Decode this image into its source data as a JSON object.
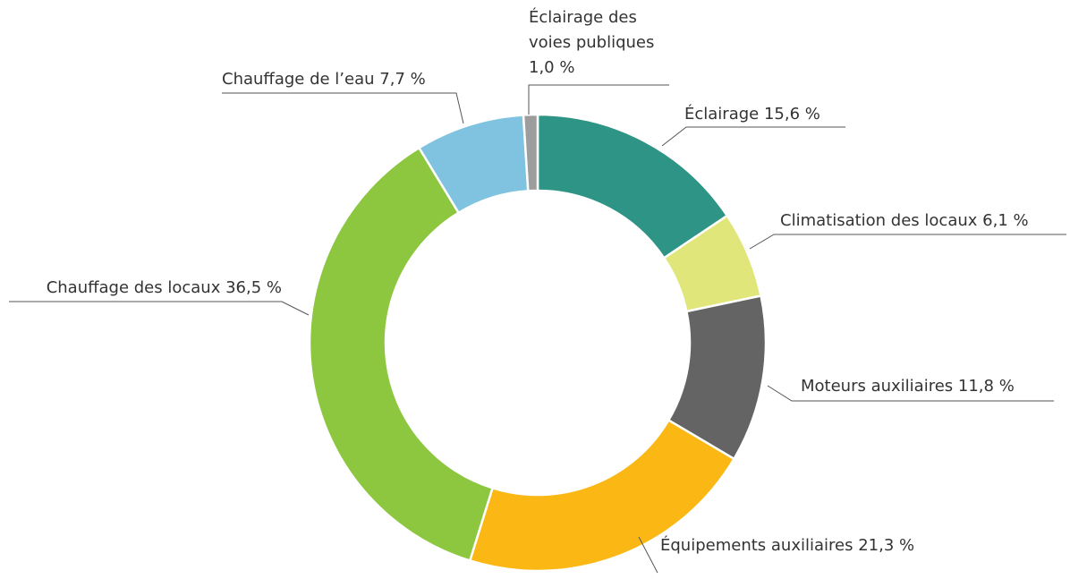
{
  "chart_data": {
    "type": "donut",
    "categories": [
      "Éclairage",
      "Climatisation des locaux",
      "Moteurs auxiliaires",
      "Équipements auxiliaires",
      "Chauffage des locaux",
      "Chauffage de l’eau",
      "Éclairage des voies publiques"
    ],
    "values": [
      15.6,
      6.1,
      11.8,
      21.3,
      36.5,
      7.7,
      1.0
    ],
    "value_labels": [
      "15,6 %",
      "6,1 %",
      "11,8 %",
      "21,3 %",
      "36,5 %",
      "7,7 %",
      "1,0 %"
    ],
    "colors": [
      "#2e9485",
      "#e1e67a",
      "#646464",
      "#fbb714",
      "#8dc63f",
      "#7fc3e0",
      "#9d9d9d"
    ]
  }
}
